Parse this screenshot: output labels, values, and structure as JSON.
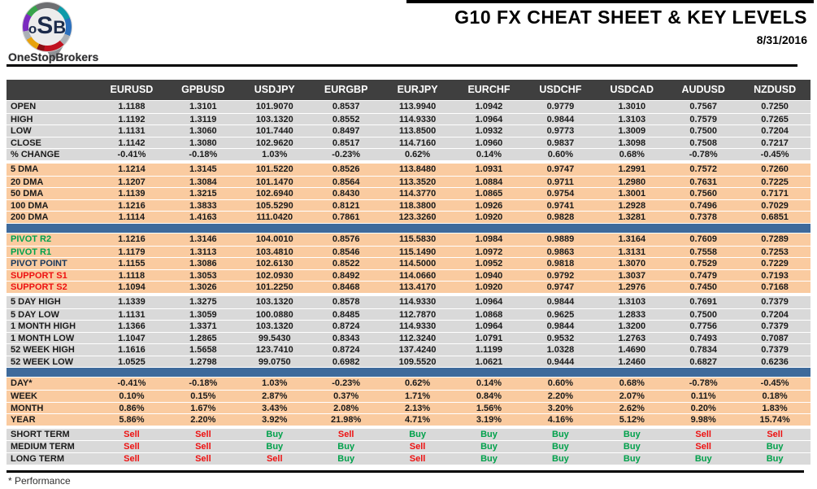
{
  "brand": {
    "logo_text_o": "o",
    "logo_text_s": "S",
    "logo_text_b": "B",
    "logo_subtitle": "OneStopBrokers"
  },
  "header": {
    "title": "G10 FX CHEAT SHEET & KEY LEVELS",
    "date": "8/31/2016"
  },
  "table": {
    "columns": [
      "EURUSD",
      "GPBUSD",
      "USDJPY",
      "EURGBP",
      "EURJPY",
      "EURCHF",
      "USDCHF",
      "USDCAD",
      "AUDUSD",
      "NZDUSD"
    ],
    "sections": [
      {
        "type": "rows",
        "id": "ohlc",
        "theme": "gray",
        "rows": [
          {
            "label": "OPEN",
            "values": [
              "1.1188",
              "1.3101",
              "101.9070",
              "0.8537",
              "113.9940",
              "1.0942",
              "0.9779",
              "1.3010",
              "0.7567",
              "0.7250"
            ]
          },
          {
            "label": "HIGH",
            "values": [
              "1.1192",
              "1.3119",
              "103.1320",
              "0.8552",
              "114.9330",
              "1.0964",
              "0.9844",
              "1.3103",
              "0.7579",
              "0.7265"
            ]
          },
          {
            "label": "LOW",
            "values": [
              "1.1131",
              "1.3060",
              "101.7440",
              "0.8497",
              "113.8500",
              "1.0932",
              "0.9773",
              "1.3009",
              "0.7500",
              "0.7204"
            ]
          },
          {
            "label": "CLOSE",
            "values": [
              "1.1142",
              "1.3080",
              "102.9620",
              "0.8517",
              "114.7160",
              "1.0960",
              "0.9837",
              "1.3098",
              "0.7508",
              "0.7217"
            ]
          },
          {
            "label": "% CHANGE",
            "values": [
              "-0.41%",
              "-0.18%",
              "1.03%",
              "-0.23%",
              "0.62%",
              "0.14%",
              "0.60%",
              "0.68%",
              "-0.78%",
              "-0.45%"
            ]
          }
        ]
      },
      {
        "type": "gap"
      },
      {
        "type": "rows",
        "id": "dma",
        "theme": "peach",
        "rows": [
          {
            "label": "5 DMA",
            "values": [
              "1.1214",
              "1.3145",
              "101.5220",
              "0.8526",
              "113.8480",
              "1.0931",
              "0.9747",
              "1.2991",
              "0.7572",
              "0.7260"
            ]
          },
          {
            "label": "20 DMA",
            "values": [
              "1.1207",
              "1.3084",
              "101.1470",
              "0.8564",
              "113.3520",
              "1.0884",
              "0.9711",
              "1.2980",
              "0.7631",
              "0.7225"
            ]
          },
          {
            "label": "50 DMA",
            "values": [
              "1.1139",
              "1.3215",
              "102.6940",
              "0.8430",
              "114.3770",
              "1.0865",
              "0.9754",
              "1.3001",
              "0.7560",
              "0.7171"
            ]
          },
          {
            "label": "100 DMA",
            "values": [
              "1.1216",
              "1.3833",
              "105.5290",
              "0.8121",
              "118.3800",
              "1.0926",
              "0.9741",
              "1.2928",
              "0.7496",
              "0.7029"
            ]
          },
          {
            "label": "200 DMA",
            "values": [
              "1.1114",
              "1.4163",
              "111.0420",
              "0.7861",
              "123.3260",
              "1.0920",
              "0.9828",
              "1.3281",
              "0.7378",
              "0.6851"
            ]
          }
        ]
      },
      {
        "type": "divider"
      },
      {
        "type": "rows",
        "id": "pivots",
        "theme": "peach",
        "rows": [
          {
            "label": "PIVOT R2",
            "label_color": "green",
            "values": [
              "1.1216",
              "1.3146",
              "104.0010",
              "0.8576",
              "115.5830",
              "1.0984",
              "0.9889",
              "1.3164",
              "0.7609",
              "0.7289"
            ]
          },
          {
            "label": "PIVOT R1",
            "label_color": "green",
            "values": [
              "1.1179",
              "1.3113",
              "103.4810",
              "0.8546",
              "115.1490",
              "1.0972",
              "0.9863",
              "1.3131",
              "0.7558",
              "0.7253"
            ]
          },
          {
            "label": "PIVOT POINT",
            "label_color": "navy",
            "values": [
              "1.1155",
              "1.3086",
              "102.6130",
              "0.8522",
              "114.5000",
              "1.0952",
              "0.9818",
              "1.3070",
              "0.7529",
              "0.7229"
            ]
          },
          {
            "label": "SUPPORT S1",
            "label_color": "red",
            "values": [
              "1.1118",
              "1.3053",
              "102.0930",
              "0.8492",
              "114.0660",
              "1.0940",
              "0.9792",
              "1.3037",
              "0.7479",
              "0.7193"
            ]
          },
          {
            "label": "SUPPORT S2",
            "label_color": "red",
            "values": [
              "1.1094",
              "1.3026",
              "101.2250",
              "0.8468",
              "113.4170",
              "1.0920",
              "0.9747",
              "1.2976",
              "0.7450",
              "0.7168"
            ]
          }
        ]
      },
      {
        "type": "gap"
      },
      {
        "type": "rows",
        "id": "ranges",
        "theme": "gray",
        "rows": [
          {
            "label": "5 DAY HIGH",
            "values": [
              "1.1339",
              "1.3275",
              "103.1320",
              "0.8578",
              "114.9330",
              "1.0964",
              "0.9844",
              "1.3103",
              "0.7691",
              "0.7379"
            ]
          },
          {
            "label": "5 DAY LOW",
            "values": [
              "1.1131",
              "1.3059",
              "100.0880",
              "0.8485",
              "112.7870",
              "1.0868",
              "0.9625",
              "1.2833",
              "0.7500",
              "0.7204"
            ]
          },
          {
            "label": "1 MONTH HIGH",
            "values": [
              "1.1366",
              "1.3371",
              "103.1320",
              "0.8724",
              "114.9330",
              "1.0964",
              "0.9844",
              "1.3200",
              "0.7756",
              "0.7379"
            ]
          },
          {
            "label": "1 MONTH LOW",
            "values": [
              "1.1047",
              "1.2865",
              "99.5430",
              "0.8343",
              "112.3240",
              "1.0791",
              "0.9532",
              "1.2763",
              "0.7493",
              "0.7087"
            ]
          },
          {
            "label": "52 WEEK HIGH",
            "values": [
              "1.1616",
              "1.5658",
              "123.7410",
              "0.8724",
              "137.4240",
              "1.1199",
              "1.0328",
              "1.4690",
              "0.7834",
              "0.7379"
            ]
          },
          {
            "label": "52 WEEK LOW",
            "values": [
              "1.0525",
              "1.2798",
              "99.0750",
              "0.6982",
              "109.5520",
              "1.0621",
              "0.9444",
              "1.2460",
              "0.6827",
              "0.6236"
            ]
          }
        ]
      },
      {
        "type": "divider"
      },
      {
        "type": "rows",
        "id": "performance",
        "theme": "peach",
        "rows": [
          {
            "label": "DAY*",
            "values": [
              "-0.41%",
              "-0.18%",
              "1.03%",
              "-0.23%",
              "0.62%",
              "0.14%",
              "0.60%",
              "0.68%",
              "-0.78%",
              "-0.45%"
            ]
          },
          {
            "label": "WEEK",
            "values": [
              "0.10%",
              "0.15%",
              "2.87%",
              "0.37%",
              "1.71%",
              "0.84%",
              "2.20%",
              "2.07%",
              "0.11%",
              "0.18%"
            ]
          },
          {
            "label": "MONTH",
            "values": [
              "0.86%",
              "1.67%",
              "3.43%",
              "2.08%",
              "2.13%",
              "1.56%",
              "3.20%",
              "2.62%",
              "0.20%",
              "1.83%"
            ]
          },
          {
            "label": "YEAR",
            "values": [
              "5.86%",
              "2.20%",
              "3.92%",
              "21.98%",
              "4.71%",
              "3.19%",
              "4.16%",
              "5.12%",
              "9.98%",
              "15.74%"
            ]
          }
        ]
      },
      {
        "type": "gap"
      },
      {
        "type": "rows",
        "id": "signals",
        "theme": "gray",
        "rows": [
          {
            "label": "SHORT TERM",
            "values": [
              "Sell",
              "Sell",
              "Buy",
              "Sell",
              "Buy",
              "Buy",
              "Buy",
              "Buy",
              "Sell",
              "Sell"
            ]
          },
          {
            "label": "MEDIUM TERM",
            "values": [
              "Sell",
              "Sell",
              "Buy",
              "Buy",
              "Sell",
              "Buy",
              "Buy",
              "Buy",
              "Sell",
              "Buy"
            ]
          },
          {
            "label": "LONG TERM",
            "values": [
              "Sell",
              "Sell",
              "Sell",
              "Buy",
              "Sell",
              "Buy",
              "Buy",
              "Buy",
              "Buy",
              "Buy"
            ]
          }
        ]
      }
    ]
  },
  "footnote": "* Performance",
  "colors": {
    "header_bg": "#3F3F3F",
    "row_gray": "#D9D9D9",
    "row_peach": "#FACBA0",
    "divider_blue": "#3E6A9B",
    "buy_green": "#00A14B",
    "sell_red": "#EE1111",
    "pivot_navy": "#17375D"
  }
}
